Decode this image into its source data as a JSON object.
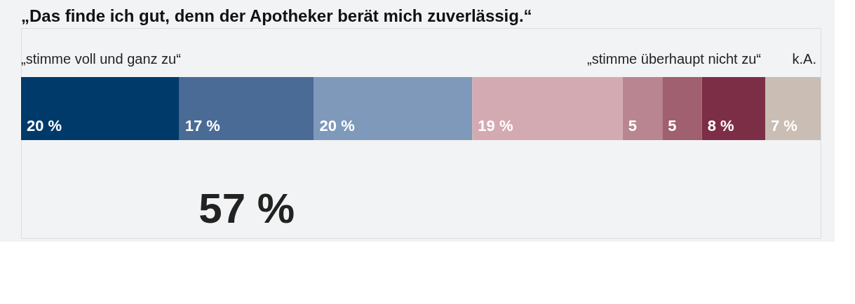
{
  "chart_data": {
    "type": "bar",
    "orientation": "horizontal",
    "stacked": true,
    "title": "„Das finde ich gut, denn der Apotheker berät mich zuverlässig.“",
    "categories": [
      null
    ],
    "xlim": [
      0,
      101
    ],
    "tick_labels": false,
    "legend": false,
    "series": [
      {
        "color": "#003a6b",
        "values": [
          20
        ],
        "value_labels": [
          "20 %"
        ]
      },
      {
        "color": "#4a6b96",
        "values": [
          17
        ],
        "value_labels": [
          "17 %"
        ]
      },
      {
        "color": "#7f99bb",
        "values": [
          20
        ],
        "value_labels": [
          "20 %"
        ]
      },
      {
        "color": "#d4aab2",
        "values": [
          19
        ],
        "value_labels": [
          "19 %"
        ]
      },
      {
        "color": "#b98591",
        "values": [
          5
        ],
        "value_labels": [
          "5"
        ]
      },
      {
        "color": "#a0606f",
        "values": [
          5
        ],
        "value_labels": [
          "5"
        ]
      },
      {
        "color": "#7d2e47",
        "values": [
          8
        ],
        "value_labels": [
          "8 %"
        ]
      },
      {
        "color": "#c9bdb4",
        "values": [
          7
        ],
        "value_labels": [
          "7 %"
        ]
      }
    ],
    "annotations": [
      "„stimme voll und ganz zu“",
      "„stimme überhaupt nicht zu“",
      "k.A.",
      "57 %"
    ]
  }
}
